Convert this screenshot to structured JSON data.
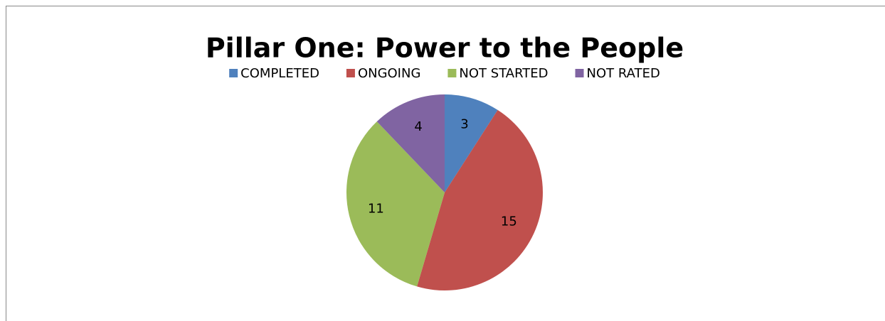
{
  "chart_data": {
    "type": "pie",
    "title": "Pillar One: Power to the People",
    "categories": [
      "COMPLETED",
      "ONGOING",
      "NOT STARTED",
      "NOT RATED"
    ],
    "values": [
      3,
      15,
      11,
      4
    ],
    "colors": [
      "#4f81bd",
      "#c0504d",
      "#9bbb59",
      "#8064a2"
    ],
    "legend": "top"
  }
}
